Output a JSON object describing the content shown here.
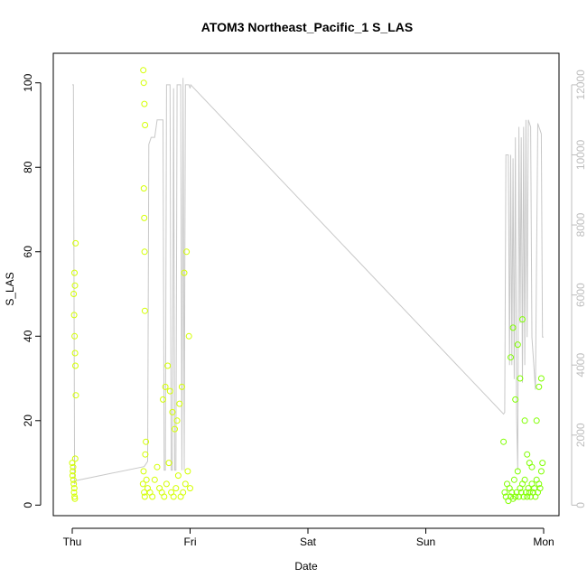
{
  "chart_data": {
    "type": "scatter",
    "title": "ATOM3 Northeast_Pacific_1 S_LAS",
    "xlabel": "Date",
    "ylabel": "S_LAS",
    "x_ticks": [
      "Thu",
      "Fri",
      "Sat",
      "Sun",
      "Mon"
    ],
    "x_range_days": [
      0,
      4.13
    ],
    "y_ticks": [
      0,
      20,
      40,
      60,
      80,
      100
    ],
    "ylim": [
      -2.5,
      107
    ],
    "y2_ticks": [
      0,
      2000,
      4000,
      6000,
      8000,
      10000,
      12000
    ],
    "y2lim": [
      -300,
      12900
    ],
    "grid": false,
    "colors": {
      "points_early": "#d4ff00",
      "points_late": "#80ff00",
      "line": "#c8c8c8",
      "axis": "#000000",
      "secondary_axis": "#bdbdbd"
    },
    "series": [
      {
        "marker": "open-circle",
        "color": "#d4ff00",
        "x": [
          0.0,
          0.005,
          0.01,
          0.015,
          0.02,
          0.025,
          0.003,
          0.008,
          0.013,
          0.018,
          0.022,
          0.012,
          0.016,
          0.02,
          0.024,
          0.028,
          0.019,
          0.023,
          0.027,
          0.031,
          0.6,
          0.605,
          0.61,
          0.615,
          0.62,
          0.625,
          0.63,
          0.603,
          0.607,
          0.612,
          0.618,
          0.608,
          0.611,
          0.614,
          0.616,
          0.64,
          0.66,
          0.68,
          0.7,
          0.72,
          0.74,
          0.76,
          0.78,
          0.8,
          0.82,
          0.84,
          0.86,
          0.88,
          0.9,
          0.92,
          0.94,
          0.96,
          0.98,
          1.0,
          0.77,
          0.79,
          0.81,
          0.83,
          0.85,
          0.87,
          0.89,
          0.91,
          0.93,
          0.95,
          0.97,
          0.99
        ],
        "y": [
          10,
          8,
          6,
          3,
          2,
          11,
          7,
          9,
          5,
          4,
          1.5,
          50,
          45,
          40,
          36,
          62,
          55,
          52,
          33,
          26,
          5,
          8,
          3,
          2,
          12,
          15,
          6,
          103,
          100,
          95,
          90,
          75,
          68,
          60,
          46,
          4,
          3,
          2,
          6,
          9,
          4,
          3,
          2,
          5,
          10,
          3,
          2,
          4,
          7,
          2,
          3,
          5,
          8,
          4,
          25,
          28,
          33,
          27,
          22,
          18,
          20,
          24,
          28,
          55,
          60,
          40
        ]
      },
      {
        "marker": "open-circle",
        "color": "#80ff00",
        "x": [
          3.66,
          3.67,
          3.68,
          3.69,
          3.7,
          3.71,
          3.72,
          3.73,
          3.74,
          3.75,
          3.76,
          3.77,
          3.78,
          3.79,
          3.8,
          3.81,
          3.82,
          3.83,
          3.84,
          3.85,
          3.86,
          3.87,
          3.88,
          3.89,
          3.9,
          3.91,
          3.92,
          3.93,
          3.94,
          3.95,
          3.96,
          3.97,
          3.98,
          3.99,
          3.72,
          3.74,
          3.76,
          3.78,
          3.8,
          3.82,
          3.84,
          3.86,
          3.88,
          3.9,
          3.94,
          3.96,
          3.98
        ],
        "y": [
          15,
          3,
          2,
          5,
          1,
          4,
          2,
          3,
          1.5,
          6,
          2,
          3,
          8,
          2,
          4,
          3,
          5,
          2,
          6,
          3,
          2,
          4,
          3,
          2,
          5,
          3,
          4,
          2,
          6,
          3,
          5,
          4,
          8,
          10,
          35,
          42,
          25,
          38,
          30,
          44,
          20,
          12,
          10,
          9,
          20,
          28,
          30
        ]
      }
    ],
    "line_series": {
      "axis": "secondary",
      "color": "#c8c8c8",
      "x": [
        0.0,
        0.01,
        0.02,
        0.03,
        0.61,
        0.62,
        0.63,
        0.64,
        0.65,
        0.66,
        0.67,
        0.68,
        0.69,
        0.7,
        0.72,
        0.74,
        0.75,
        0.76,
        0.77,
        0.78,
        0.79,
        0.8,
        0.81,
        0.82,
        0.83,
        0.84,
        0.85,
        0.86,
        0.87,
        0.88,
        0.89,
        0.9,
        0.91,
        0.92,
        0.93,
        0.94,
        0.95,
        0.96,
        0.97,
        0.98,
        0.99,
        1.0,
        1.005,
        3.66,
        3.67,
        3.68,
        3.7,
        3.71,
        3.72,
        3.73,
        3.74,
        3.75,
        3.76,
        3.77,
        3.78,
        3.79,
        3.8,
        3.81,
        3.82,
        3.83,
        3.84,
        3.85,
        3.86,
        3.87,
        3.88,
        3.89,
        3.9,
        3.93,
        3.95,
        3.96,
        3.97,
        3.98,
        3.99,
        4.0
      ],
      "y": [
        12000,
        12000,
        600,
        700,
        1100,
        1150,
        1200,
        1250,
        10300,
        10400,
        10500,
        10500,
        10500,
        10500,
        11000,
        11000,
        11000,
        11000,
        11000,
        1000,
        1000,
        12000,
        12000,
        12000,
        12000,
        1000,
        1000,
        11900,
        1000,
        1000,
        12000,
        12000,
        12000,
        12000,
        1000,
        12200,
        1000,
        12000,
        12000,
        12000,
        12000,
        11900,
        12000,
        2600,
        2650,
        10000,
        10000,
        4000,
        10000,
        4000,
        9900,
        3600,
        10500,
        2600,
        1000,
        10800,
        5200,
        10500,
        3500,
        10800,
        4000,
        11000,
        4800,
        11000,
        10900,
        10800,
        4800,
        3300,
        10900,
        10800,
        10700,
        10600,
        4800,
        4800
      ]
    }
  }
}
